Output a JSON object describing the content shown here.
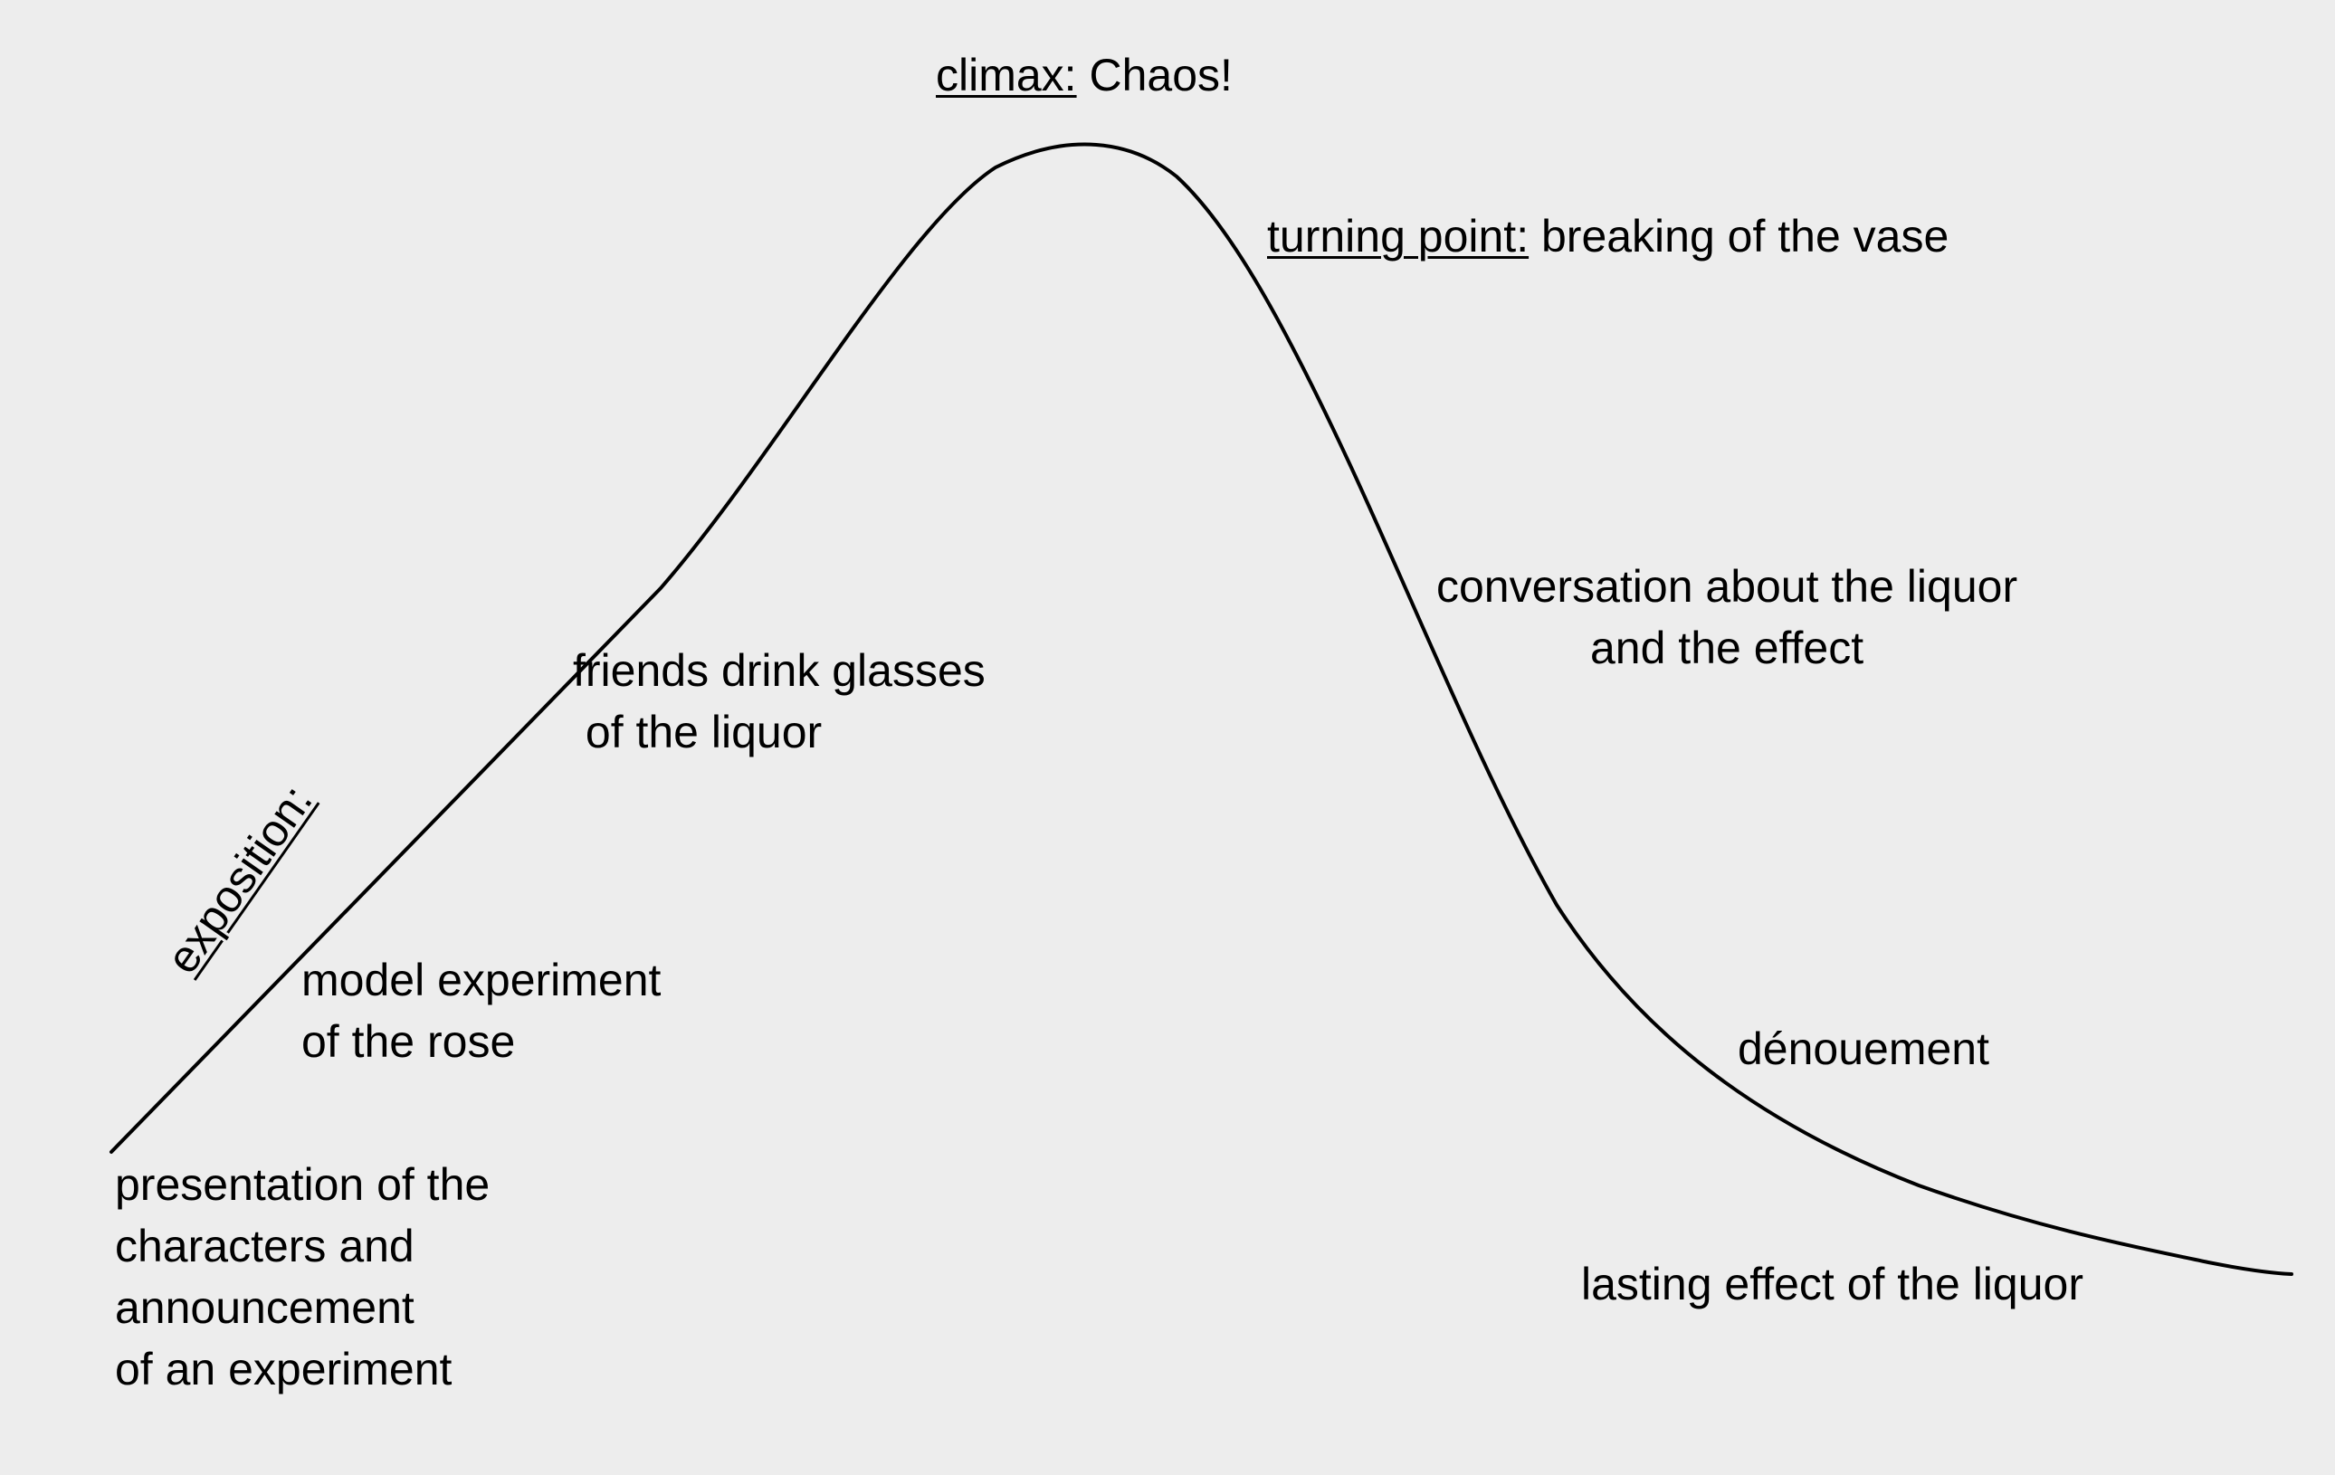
{
  "labels": {
    "climax": {
      "heading": "climax:",
      "text": " Chaos!"
    },
    "turning_point": {
      "heading": "turning point:",
      "text": " breaking of the vase"
    },
    "exposition": {
      "heading": "exposition:"
    },
    "friends": {
      "line1": "friends drink glasses",
      "line2": " of the liquor"
    },
    "model": {
      "line1": "model experiment",
      "line2": "of the rose"
    },
    "presentation": {
      "line1": "presentation of the",
      "line2": "characters and",
      "line3": "announcement",
      "line4": "of an experiment"
    },
    "conversation": {
      "line1": "conversation about the liquor",
      "line2": "and the effect"
    },
    "denouement": {
      "text": "dénouement"
    },
    "lasting": {
      "text": "lasting effect of the liquor"
    }
  }
}
